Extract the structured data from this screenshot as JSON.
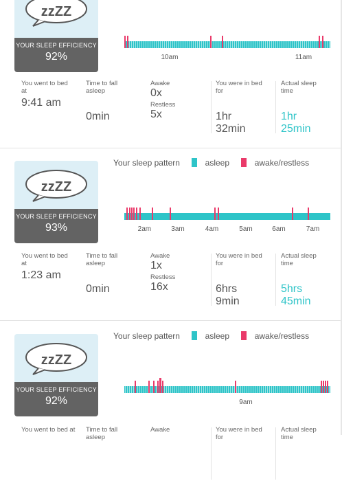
{
  "common": {
    "efficiency_label": "YOUR SLEEP EFFICIENCY",
    "bubble_text": "zzZZ",
    "legend_title": "Your sleep pattern",
    "legend_asleep": "asleep",
    "legend_awake": "awake/restless",
    "colors": {
      "asleep": "#2ec4c8",
      "awake": "#ea3a6a",
      "card_bottom": "#636363",
      "card_top": "#ddeff6"
    },
    "labels": {
      "went_to_bed": "You went to bed at",
      "time_to_fall": "Time to fall asleep",
      "awake": "Awake",
      "restless": "Restless",
      "in_bed": "You were in bed for",
      "actual_sleep": "Actual sleep time"
    },
    "icons": [
      "speech-bubble-icon"
    ]
  },
  "records": [
    {
      "efficiency": "92%",
      "show_legend": false,
      "ticks": [
        {
          "label": "10am",
          "pos": 0.22
        },
        {
          "label": "11am",
          "pos": 0.87
        }
      ],
      "awake_marks": [
        0.0,
        0.012,
        0.42,
        0.475,
        0.95,
        0.965
      ],
      "wide_marks": [],
      "went_to_bed": "9:41 am",
      "time_to_fall": "0min",
      "awake_count": "0x",
      "restless_count": "5x",
      "in_bed_1": "1hr",
      "in_bed_2": "32min",
      "actual_1": "1hr",
      "actual_2": "25min"
    },
    {
      "efficiency": "93%",
      "show_legend": true,
      "ticks": [
        {
          "label": "2am",
          "pos": 0.098
        },
        {
          "label": "3am",
          "pos": 0.26
        },
        {
          "label": "4am",
          "pos": 0.425
        },
        {
          "label": "5am",
          "pos": 0.59
        },
        {
          "label": "6am",
          "pos": 0.75
        },
        {
          "label": "7am",
          "pos": 0.915
        }
      ],
      "awake_marks": [
        0.01,
        0.022,
        0.034,
        0.045,
        0.058,
        0.075,
        0.135,
        0.22,
        0.44,
        0.455,
        0.82,
        0.895
      ],
      "wide_marks": [
        0.448,
        0.9
      ],
      "went_to_bed": "1:23 am",
      "time_to_fall": "0min",
      "awake_count": "1x",
      "restless_count": "16x",
      "in_bed_1": "6hrs",
      "in_bed_2": "9min",
      "actual_1": "5hrs",
      "actual_2": "45min"
    },
    {
      "efficiency": "92%",
      "show_legend": true,
      "ticks": [
        {
          "label": "9am",
          "pos": 0.59
        }
      ],
      "awake_marks": [
        0.05,
        0.118,
        0.14,
        0.16,
        0.172,
        0.183,
        0.54,
        0.96,
        0.97,
        0.98,
        0.99
      ],
      "wide_marks": [
        0.172
      ],
      "went_to_bed": "",
      "time_to_fall": "",
      "awake_count": "",
      "restless_count": "",
      "in_bed_1": "",
      "in_bed_2": "",
      "actual_1": "",
      "actual_2": ""
    }
  ]
}
